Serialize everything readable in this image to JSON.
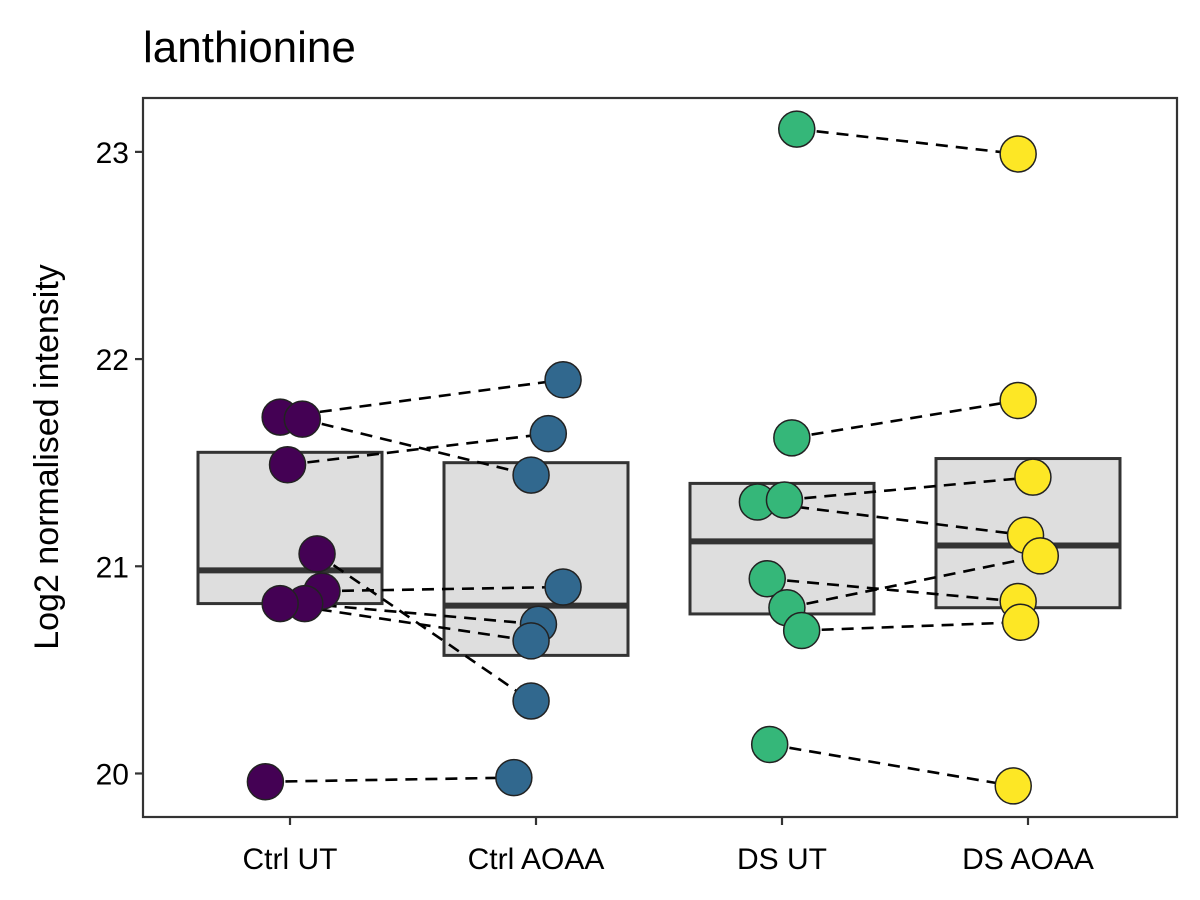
{
  "chart_data": {
    "type": "box",
    "title": "lanthionine",
    "xlabel": "",
    "ylabel": "Log2 normalised intensity",
    "ylim": [
      19.79,
      23.26
    ],
    "yticks": [
      20,
      21,
      22,
      23
    ],
    "grid": false,
    "legend": "none",
    "categories": [
      "Ctrl UT",
      "Ctrl AOAA",
      "DS UT",
      "DS AOAA"
    ],
    "colors": [
      "#440154",
      "#31688E",
      "#35B779",
      "#FDE725"
    ],
    "box_fill": "#DEDEDE",
    "boxes": [
      {
        "q1": 20.82,
        "median": 20.98,
        "q3": 21.55
      },
      {
        "q1": 20.57,
        "median": 20.81,
        "q3": 21.5
      },
      {
        "q1": 20.77,
        "median": 21.12,
        "q3": 21.4
      },
      {
        "q1": 20.8,
        "median": 21.1,
        "q3": 21.52
      }
    ],
    "points": [
      [
        {
          "y": 21.72,
          "jitter": -0.04
        },
        {
          "y": 21.71,
          "jitter": 0.05
        },
        {
          "y": 21.49,
          "jitter": -0.01
        },
        {
          "y": 21.06,
          "jitter": 0.11
        },
        {
          "y": 20.88,
          "jitter": 0.13
        },
        {
          "y": 20.82,
          "jitter": 0.06
        },
        {
          "y": 20.82,
          "jitter": -0.04
        },
        {
          "y": 19.96,
          "jitter": -0.1
        }
      ],
      [
        {
          "y": 21.9,
          "jitter": 0.11
        },
        {
          "y": 21.64,
          "jitter": 0.05
        },
        {
          "y": 21.44,
          "jitter": -0.02
        },
        {
          "y": 20.9,
          "jitter": 0.11
        },
        {
          "y": 20.72,
          "jitter": 0.01
        },
        {
          "y": 20.64,
          "jitter": -0.02
        },
        {
          "y": 20.35,
          "jitter": -0.02
        },
        {
          "y": 19.98,
          "jitter": -0.09
        }
      ],
      [
        {
          "y": 23.11,
          "jitter": 0.06
        },
        {
          "y": 21.62,
          "jitter": 0.04
        },
        {
          "y": 21.31,
          "jitter": -0.1
        },
        {
          "y": 21.32,
          "jitter": 0.01
        },
        {
          "y": 20.94,
          "jitter": -0.06
        },
        {
          "y": 20.8,
          "jitter": 0.02
        },
        {
          "y": 20.69,
          "jitter": 0.08
        },
        {
          "y": 20.14,
          "jitter": -0.05
        }
      ],
      [
        {
          "y": 22.99,
          "jitter": -0.04
        },
        {
          "y": 21.8,
          "jitter": -0.04
        },
        {
          "y": 21.43,
          "jitter": 0.02
        },
        {
          "y": 21.15,
          "jitter": -0.01
        },
        {
          "y": 21.05,
          "jitter": 0.05
        },
        {
          "y": 20.83,
          "jitter": -0.04
        },
        {
          "y": 20.73,
          "jitter": -0.03
        },
        {
          "y": 19.94,
          "jitter": -0.06
        }
      ]
    ],
    "pairs": [
      {
        "from": [
          0,
          0
        ],
        "to": [
          1,
          0
        ]
      },
      {
        "from": [
          0,
          1
        ],
        "to": [
          1,
          2
        ]
      },
      {
        "from": [
          0,
          2
        ],
        "to": [
          1,
          1
        ]
      },
      {
        "from": [
          0,
          3
        ],
        "to": [
          1,
          6
        ]
      },
      {
        "from": [
          0,
          4
        ],
        "to": [
          1,
          3
        ]
      },
      {
        "from": [
          0,
          5
        ],
        "to": [
          1,
          4
        ]
      },
      {
        "from": [
          0,
          6
        ],
        "to": [
          1,
          5
        ]
      },
      {
        "from": [
          0,
          7
        ],
        "to": [
          1,
          7
        ]
      },
      {
        "from": [
          2,
          0
        ],
        "to": [
          3,
          0
        ]
      },
      {
        "from": [
          2,
          1
        ],
        "to": [
          3,
          1
        ]
      },
      {
        "from": [
          2,
          2
        ],
        "to": [
          3,
          3
        ]
      },
      {
        "from": [
          2,
          3
        ],
        "to": [
          3,
          2
        ]
      },
      {
        "from": [
          2,
          4
        ],
        "to": [
          3,
          5
        ]
      },
      {
        "from": [
          2,
          5
        ],
        "to": [
          3,
          4
        ]
      },
      {
        "from": [
          2,
          6
        ],
        "to": [
          3,
          6
        ]
      },
      {
        "from": [
          2,
          7
        ],
        "to": [
          3,
          7
        ]
      }
    ]
  }
}
